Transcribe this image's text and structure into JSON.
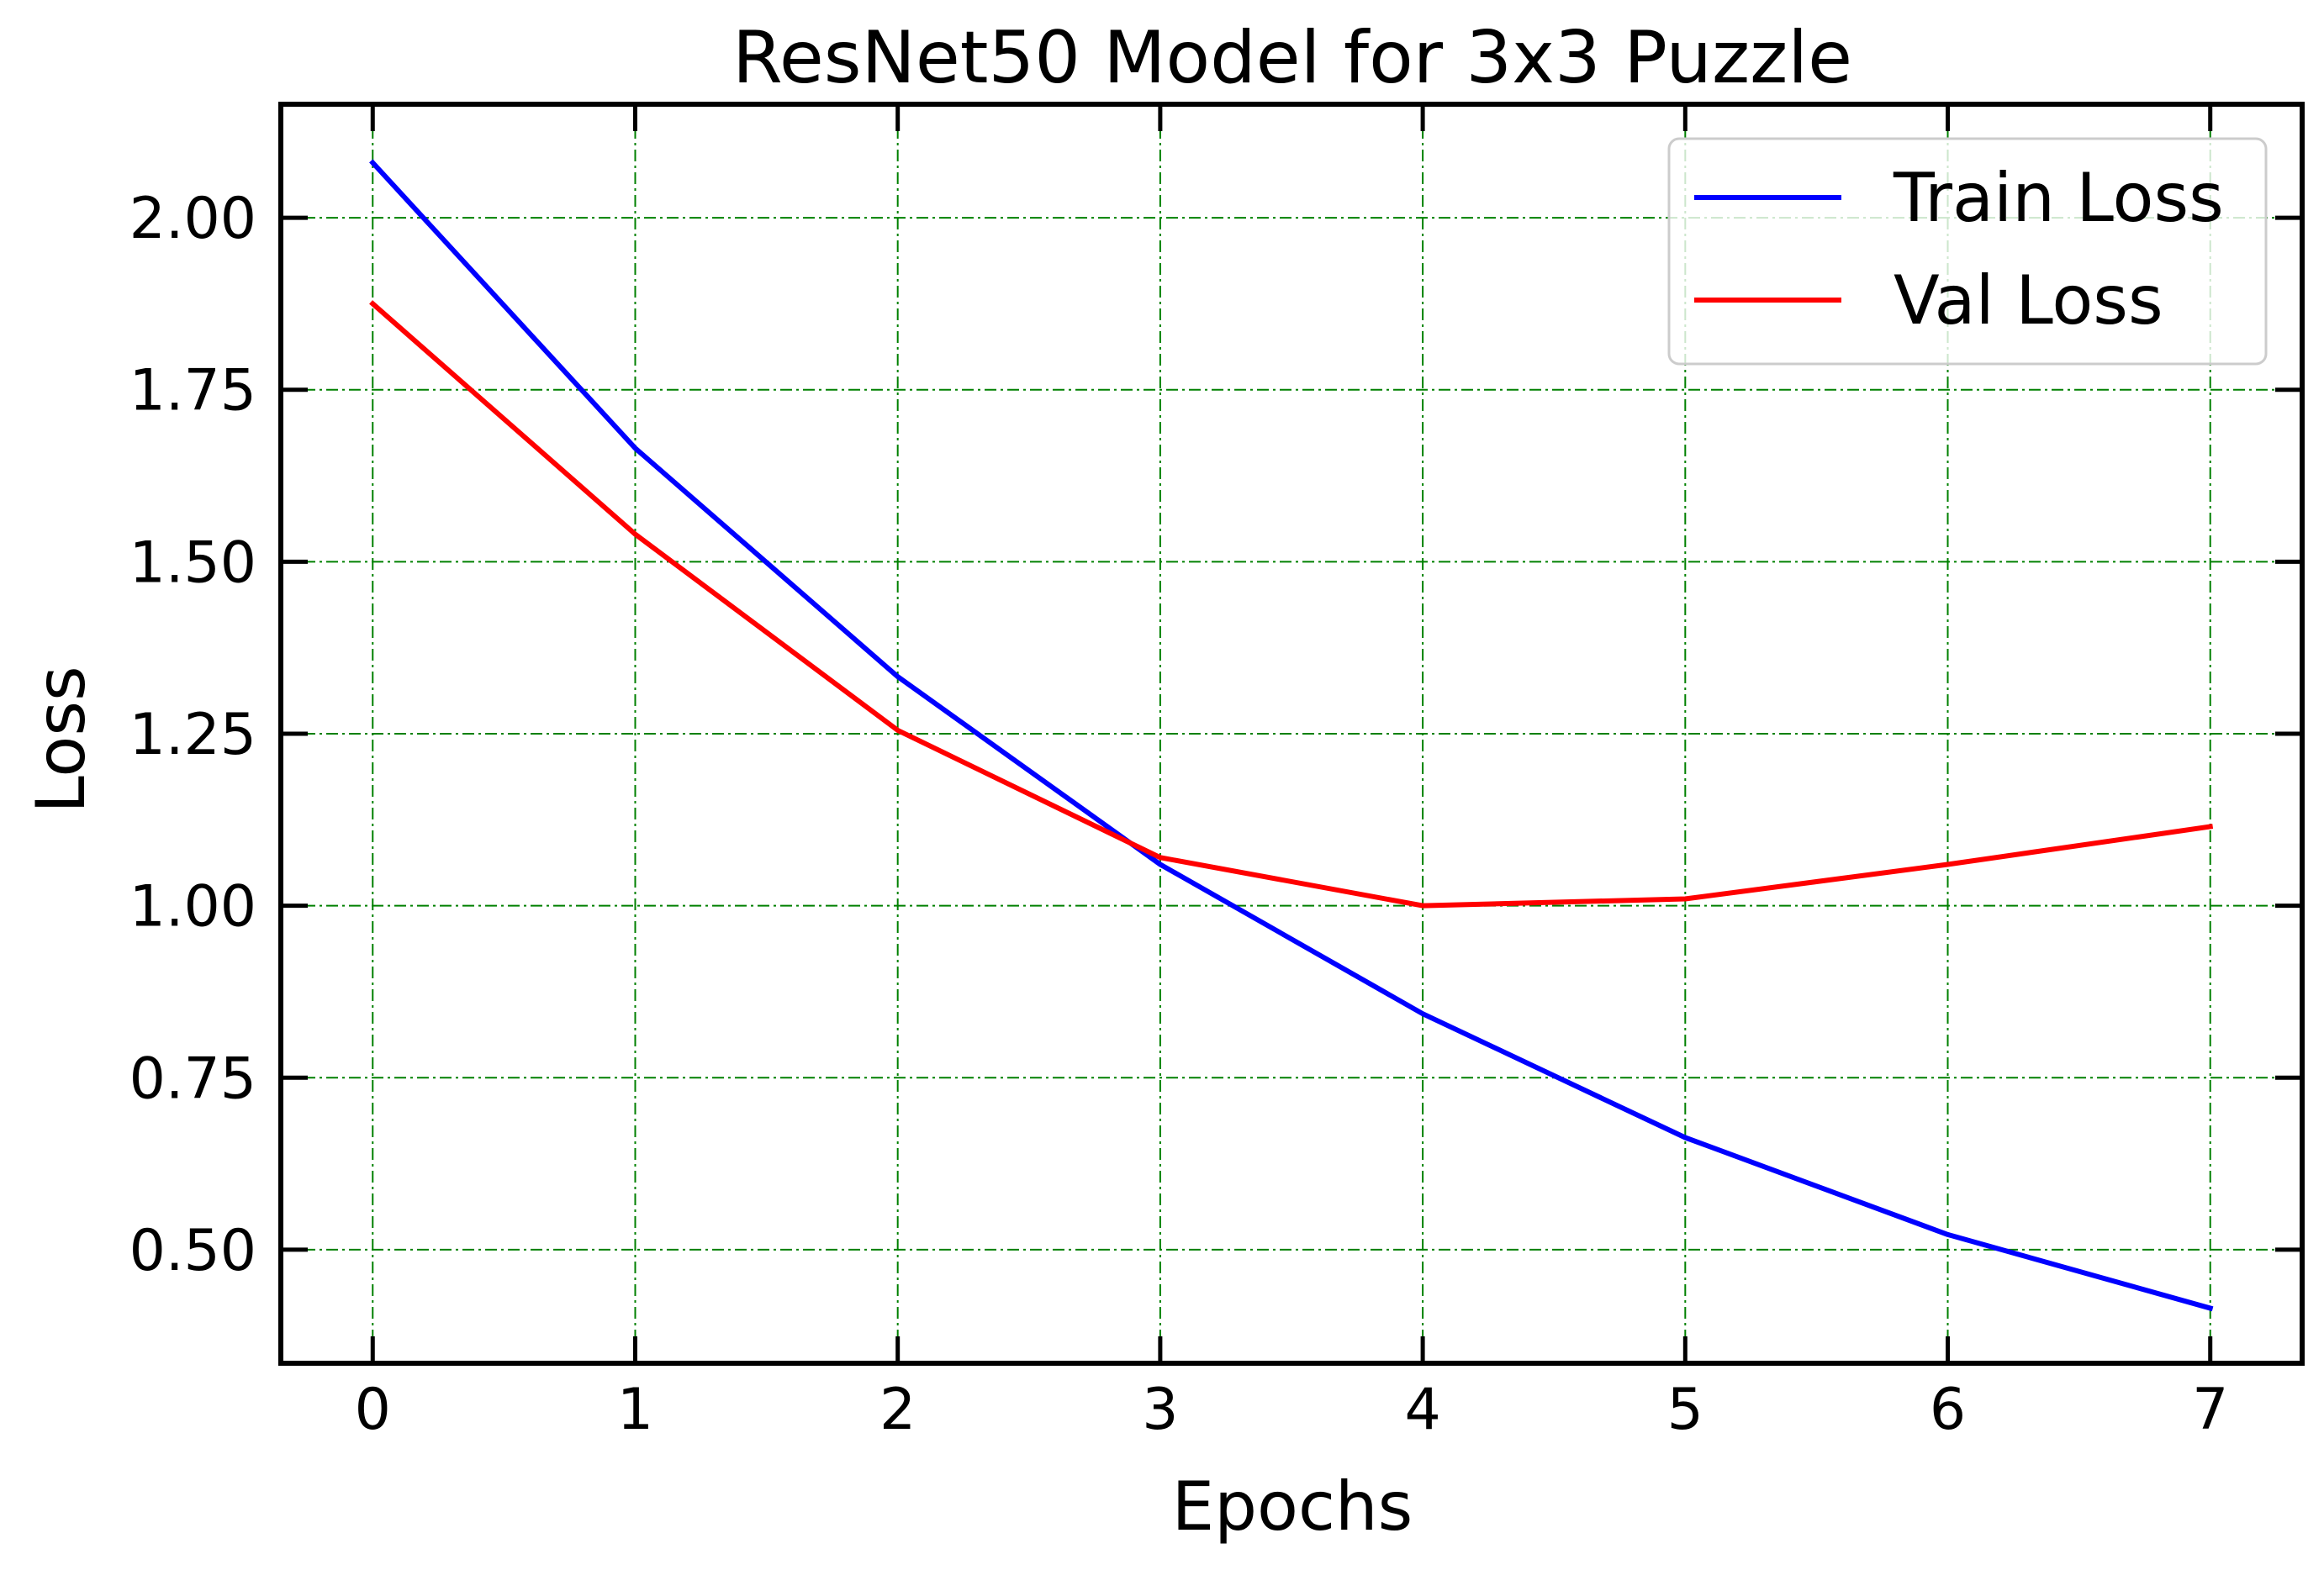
{
  "chart_data": {
    "type": "line",
    "title": "ResNet50 Model for 3x3 Puzzle",
    "xlabel": "Epochs",
    "ylabel": "Loss",
    "x": [
      0,
      1,
      2,
      3,
      4,
      5,
      6,
      7
    ],
    "xlim": [
      -0.35,
      7.35
    ],
    "ylim": [
      0.335,
      2.165
    ],
    "xticks": [
      0,
      1,
      2,
      3,
      4,
      5,
      6,
      7
    ],
    "xtick_labels": [
      "0",
      "1",
      "2",
      "3",
      "4",
      "5",
      "6",
      "7"
    ],
    "yticks": [
      0.5,
      0.75,
      1.0,
      1.25,
      1.5,
      1.75,
      2.0
    ],
    "ytick_labels": [
      "0.50",
      "0.75",
      "1.00",
      "1.25",
      "1.50",
      "1.75",
      "2.00"
    ],
    "grid": true,
    "grid_color": "#008000",
    "legend_position": "top-right",
    "series": [
      {
        "name": "Train Loss",
        "color": "#0000ff",
        "values": [
          2.08,
          1.665,
          1.333,
          1.06,
          0.843,
          0.663,
          0.522,
          0.415
        ]
      },
      {
        "name": "Val Loss",
        "color": "#ff0000",
        "values": [
          1.875,
          1.54,
          1.255,
          1.07,
          1.0,
          1.01,
          1.06,
          1.115
        ]
      }
    ]
  }
}
